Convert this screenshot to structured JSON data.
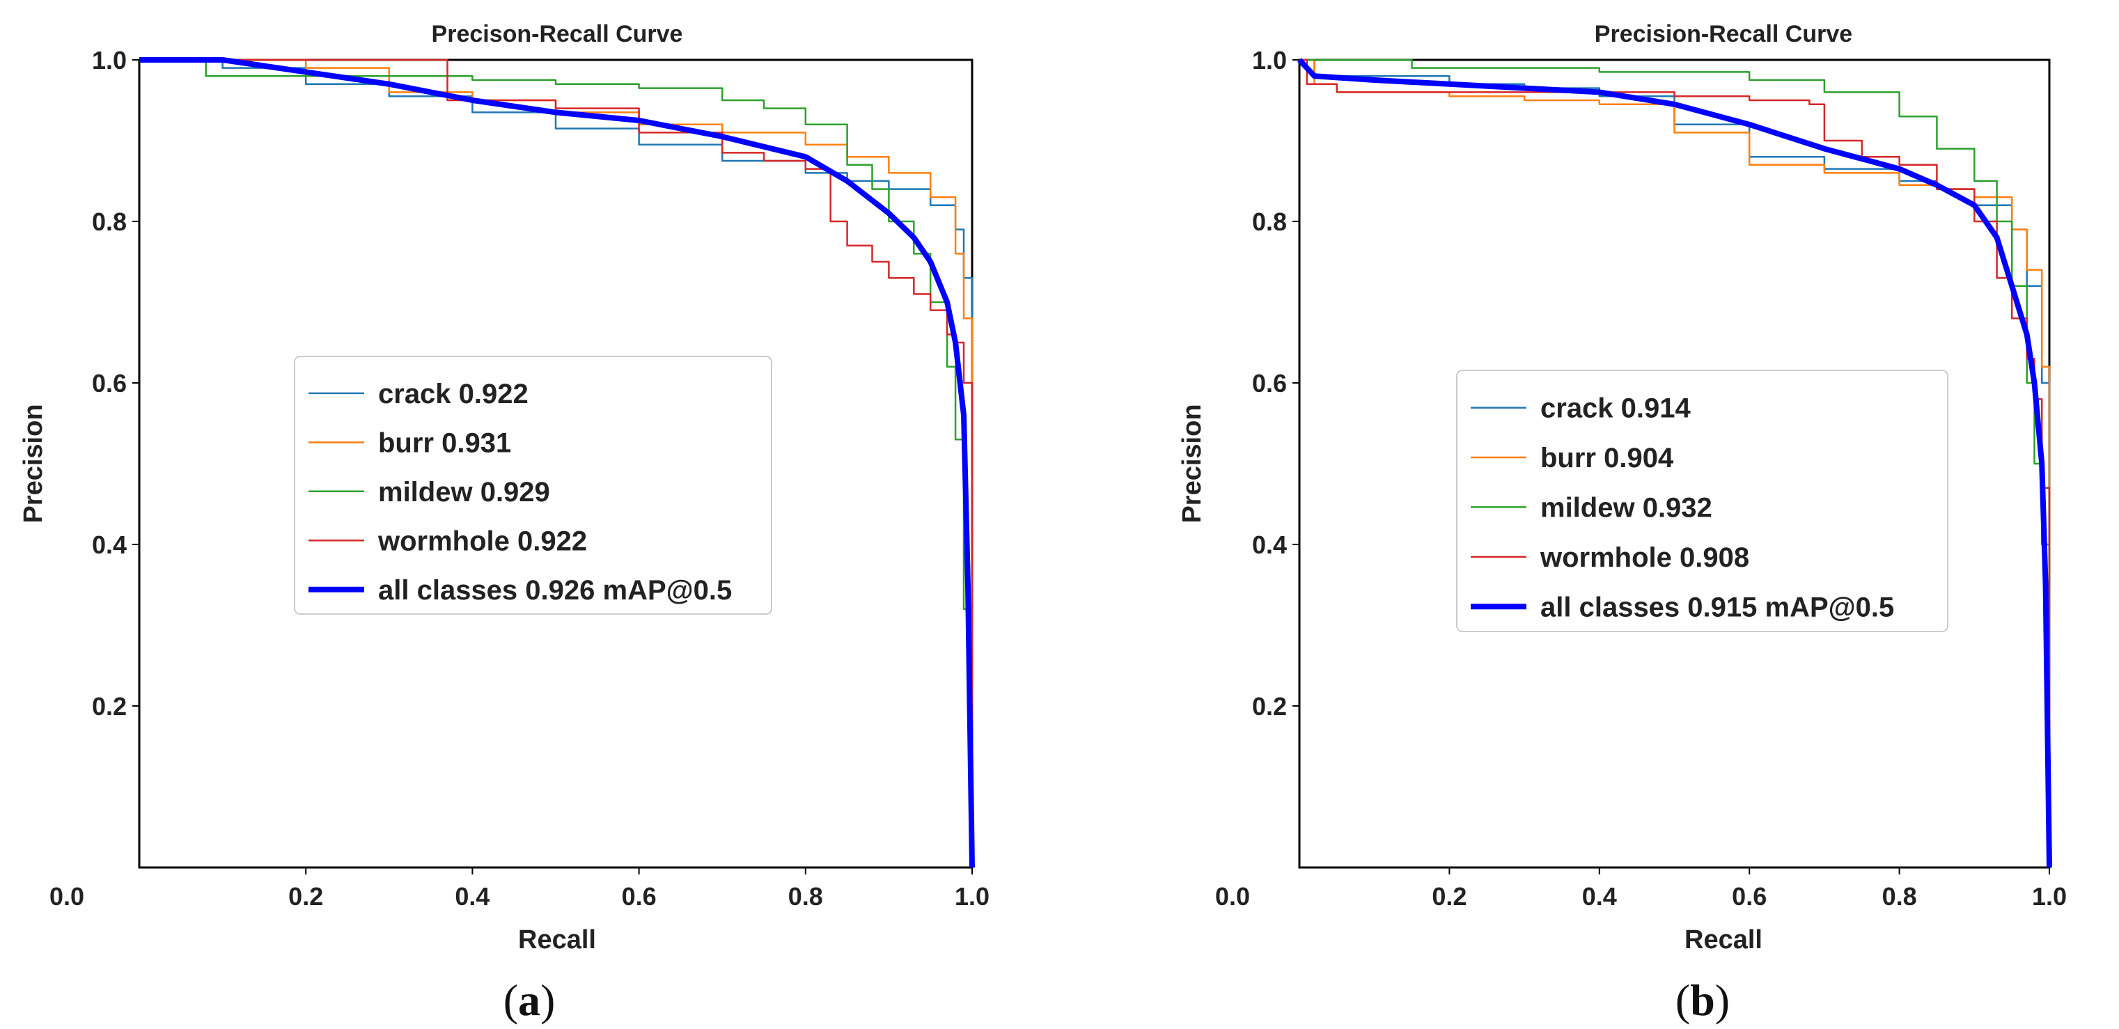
{
  "colors": {
    "crack": "#1f77b4",
    "burr": "#ff7f0e",
    "mildew": "#2ca02c",
    "wormhole": "#d62728",
    "all_classes": "#0000ff"
  },
  "chart_data": [
    {
      "id": "a",
      "type": "line",
      "title": "Precison-Recall Curve",
      "xlabel": "Recall",
      "ylabel": "Precision",
      "xlim": [
        0,
        1
      ],
      "ylim": [
        0,
        1
      ],
      "x_tick_labels": [
        "0.0",
        "0.2",
        "0.4",
        "0.6",
        "0.8",
        "1.0"
      ],
      "y_tick_labels": [
        "0.2",
        "0.4",
        "0.6",
        "0.8",
        "1.0"
      ],
      "legend_position": "center-left",
      "caption_open": "(",
      "caption_letter": "a",
      "caption_close": ")",
      "series": [
        {
          "name": "crack",
          "legend": "crack 0.922",
          "step": true,
          "x": [
            0,
            0.05,
            0.1,
            0.2,
            0.3,
            0.4,
            0.5,
            0.6,
            0.7,
            0.8,
            0.85,
            0.9,
            0.95,
            0.98,
            0.99,
            1.0
          ],
          "y": [
            1.0,
            1.0,
            0.99,
            0.97,
            0.955,
            0.935,
            0.915,
            0.895,
            0.875,
            0.86,
            0.85,
            0.84,
            0.82,
            0.79,
            0.73,
            0.0
          ]
        },
        {
          "name": "burr",
          "legend": "burr 0.931",
          "step": true,
          "x": [
            0,
            0.1,
            0.2,
            0.3,
            0.4,
            0.5,
            0.6,
            0.7,
            0.8,
            0.85,
            0.9,
            0.95,
            0.98,
            0.99,
            1.0
          ],
          "y": [
            1.0,
            1.0,
            0.99,
            0.96,
            0.95,
            0.935,
            0.92,
            0.91,
            0.895,
            0.88,
            0.86,
            0.83,
            0.76,
            0.68,
            0.0
          ]
        },
        {
          "name": "mildew",
          "legend": "mildew 0.929",
          "step": true,
          "x": [
            0,
            0.08,
            0.15,
            0.3,
            0.4,
            0.5,
            0.6,
            0.7,
            0.75,
            0.8,
            0.85,
            0.88,
            0.9,
            0.93,
            0.95,
            0.97,
            0.98,
            0.99,
            1.0
          ],
          "y": [
            1.0,
            0.98,
            0.98,
            0.98,
            0.975,
            0.97,
            0.965,
            0.95,
            0.94,
            0.92,
            0.87,
            0.84,
            0.8,
            0.76,
            0.7,
            0.62,
            0.53,
            0.32,
            0.0
          ]
        },
        {
          "name": "wormhole",
          "legend": "wormhole 0.922",
          "step": true,
          "x": [
            0,
            0.2,
            0.35,
            0.37,
            0.5,
            0.6,
            0.7,
            0.75,
            0.8,
            0.83,
            0.85,
            0.88,
            0.9,
            0.93,
            0.95,
            0.97,
            0.98,
            0.99,
            1.0
          ],
          "y": [
            1.0,
            1.0,
            1.0,
            0.95,
            0.94,
            0.91,
            0.885,
            0.875,
            0.865,
            0.8,
            0.77,
            0.75,
            0.73,
            0.71,
            0.69,
            0.66,
            0.65,
            0.6,
            0.0
          ]
        },
        {
          "name": "all_classes",
          "legend": "all classes 0.926 mAP@0.5",
          "step": false,
          "x": [
            0,
            0.1,
            0.2,
            0.3,
            0.4,
            0.5,
            0.6,
            0.7,
            0.8,
            0.85,
            0.9,
            0.93,
            0.95,
            0.97,
            0.98,
            0.99,
            0.995,
            1.0
          ],
          "y": [
            1.0,
            1.0,
            0.985,
            0.97,
            0.95,
            0.935,
            0.925,
            0.905,
            0.88,
            0.85,
            0.81,
            0.78,
            0.75,
            0.7,
            0.65,
            0.56,
            0.35,
            0.0
          ]
        }
      ]
    },
    {
      "id": "b",
      "type": "line",
      "title": "Precision-Recall Curve",
      "xlabel": "Recall",
      "ylabel": "Precision",
      "xlim": [
        0,
        1
      ],
      "ylim": [
        0,
        1
      ],
      "x_tick_labels": [
        "0.0",
        "0.2",
        "0.4",
        "0.6",
        "0.8",
        "1.0"
      ],
      "y_tick_labels": [
        "0.2",
        "0.4",
        "0.6",
        "0.8",
        "1.0"
      ],
      "legend_position": "center",
      "caption_open": "(",
      "caption_letter": "b",
      "caption_close": ")",
      "series": [
        {
          "name": "crack",
          "legend": "crack 0.914",
          "step": true,
          "x": [
            0,
            0.02,
            0.1,
            0.2,
            0.3,
            0.4,
            0.5,
            0.6,
            0.7,
            0.8,
            0.85,
            0.9,
            0.95,
            0.97,
            0.99,
            1.0
          ],
          "y": [
            1.0,
            0.98,
            0.98,
            0.97,
            0.965,
            0.955,
            0.92,
            0.88,
            0.865,
            0.85,
            0.84,
            0.82,
            0.79,
            0.72,
            0.6,
            0.0
          ]
        },
        {
          "name": "burr",
          "legend": "burr 0.904",
          "step": true,
          "x": [
            0,
            0.02,
            0.05,
            0.2,
            0.3,
            0.4,
            0.5,
            0.6,
            0.7,
            0.8,
            0.85,
            0.9,
            0.95,
            0.97,
            0.99,
            1.0
          ],
          "y": [
            1.0,
            0.97,
            0.96,
            0.955,
            0.95,
            0.945,
            0.91,
            0.87,
            0.86,
            0.845,
            0.84,
            0.83,
            0.79,
            0.74,
            0.62,
            0.0
          ]
        },
        {
          "name": "mildew",
          "legend": "mildew 0.932",
          "step": true,
          "x": [
            0,
            0.05,
            0.15,
            0.3,
            0.4,
            0.6,
            0.7,
            0.8,
            0.85,
            0.9,
            0.93,
            0.95,
            0.97,
            0.98,
            0.99,
            1.0
          ],
          "y": [
            1.0,
            1.0,
            0.99,
            0.99,
            0.985,
            0.975,
            0.96,
            0.93,
            0.89,
            0.85,
            0.8,
            0.72,
            0.6,
            0.5,
            0.4,
            0.0
          ]
        },
        {
          "name": "wormhole",
          "legend": "wormhole 0.908",
          "step": true,
          "x": [
            0,
            0.01,
            0.05,
            0.2,
            0.4,
            0.5,
            0.6,
            0.68,
            0.7,
            0.75,
            0.8,
            0.85,
            0.9,
            0.93,
            0.95,
            0.97,
            0.98,
            0.99,
            1.0
          ],
          "y": [
            1.0,
            0.97,
            0.96,
            0.96,
            0.96,
            0.955,
            0.95,
            0.945,
            0.9,
            0.88,
            0.87,
            0.84,
            0.8,
            0.73,
            0.68,
            0.63,
            0.58,
            0.47,
            0.0
          ]
        },
        {
          "name": "all_classes",
          "legend": "all classes 0.915 mAP@0.5",
          "step": false,
          "x": [
            0,
            0.02,
            0.1,
            0.2,
            0.3,
            0.4,
            0.5,
            0.6,
            0.7,
            0.8,
            0.85,
            0.9,
            0.93,
            0.95,
            0.97,
            0.98,
            0.99,
            0.995,
            1.0
          ],
          "y": [
            1.0,
            0.98,
            0.975,
            0.97,
            0.965,
            0.96,
            0.945,
            0.92,
            0.89,
            0.865,
            0.845,
            0.82,
            0.78,
            0.72,
            0.66,
            0.6,
            0.5,
            0.35,
            0.0
          ]
        }
      ]
    }
  ]
}
